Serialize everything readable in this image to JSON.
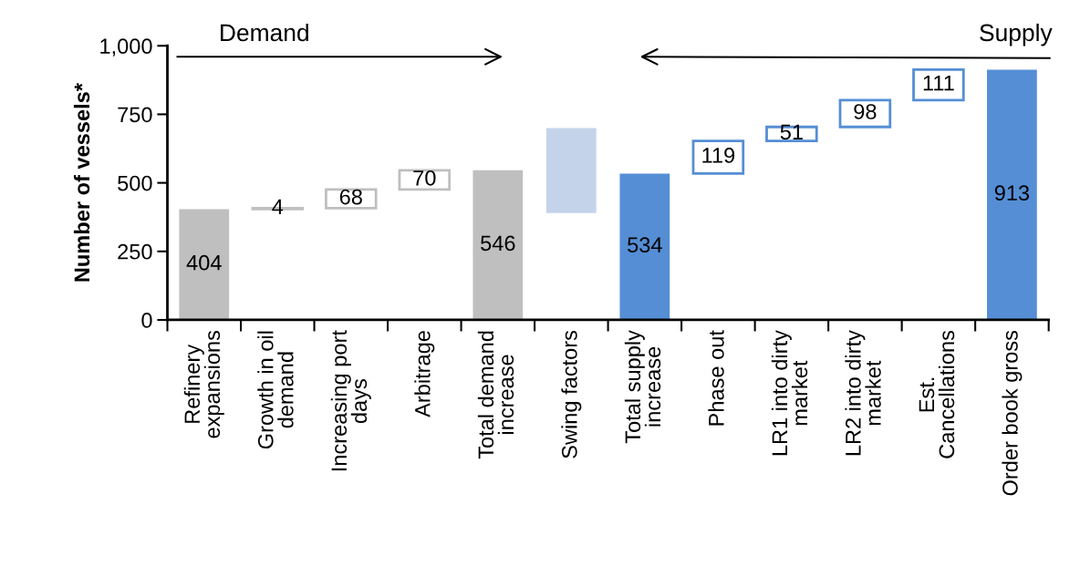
{
  "chart_data": {
    "type": "bar",
    "ylabel": "Number of vessels*",
    "categories": [
      "Refinery\nexpansions",
      "Growth in oil\ndemand",
      "Increasing port\ndays",
      "Arbitrage",
      "Total demand\nincrease",
      "Swing factors",
      "Total supply\nincrease",
      "Phase out",
      "LR1 into dirty\nmarket",
      "LR2 into dirty\nmarket",
      "Est.\nCancellations",
      "Order book gross"
    ],
    "values": [
      404,
      4,
      68,
      70,
      546,
      310,
      534,
      119,
      51,
      98,
      111,
      913
    ],
    "base": [
      0,
      404,
      408,
      476,
      0,
      390,
      0,
      534,
      653,
      704,
      802,
      0
    ],
    "value_labels": [
      "404",
      "4",
      "68",
      "70",
      "546",
      null,
      "534",
      "119",
      "51",
      "98",
      "111",
      "913"
    ],
    "colors": [
      "#bfbfbf",
      "#bfbfbf",
      "#bfbfbf",
      "#bfbfbf",
      "#bfbfbf",
      "#c5d3ea",
      "#558ed5",
      "#558ed5",
      "#558ed5",
      "#558ed5",
      "#558ed5",
      "#558ed5"
    ],
    "ylim": [
      0,
      1000
    ],
    "yticks": [
      0,
      {
        "value": 250,
        "label": "250"
      },
      {
        "value": 500,
        "label": "500"
      },
      {
        "value": 750,
        "label": "750"
      },
      {
        "value": 1000,
        "label": "1,000"
      }
    ],
    "annotations": [
      "Demand",
      "Supply"
    ],
    "grid": false,
    "legend": false
  }
}
